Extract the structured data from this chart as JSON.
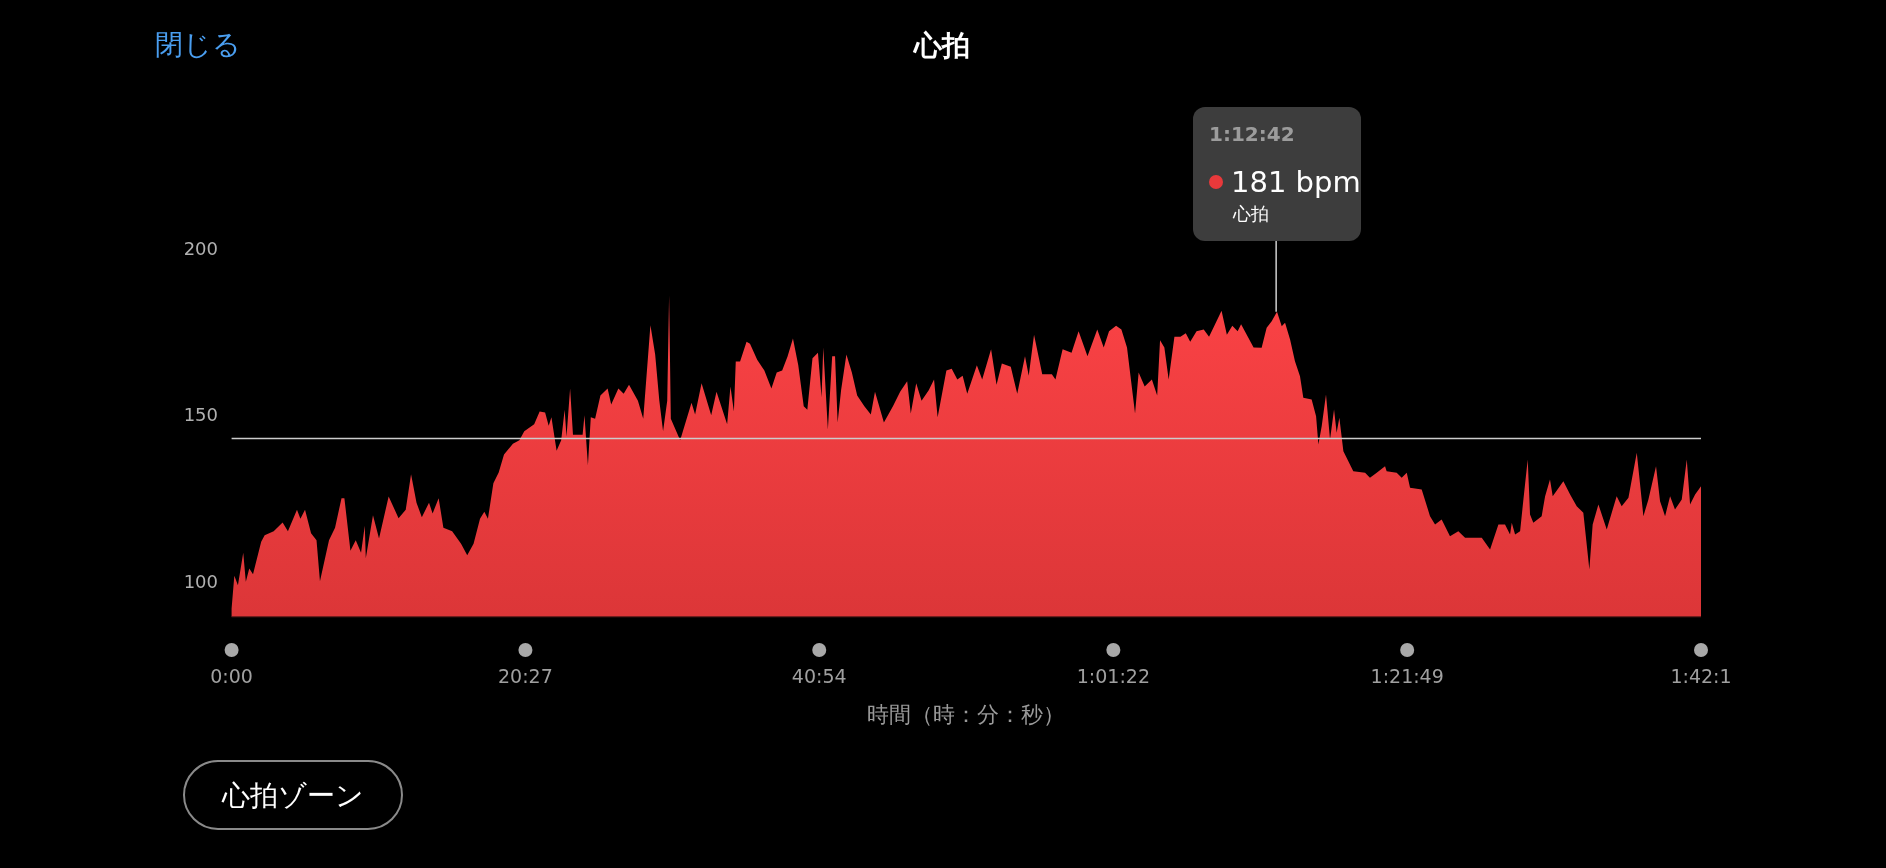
{
  "chart_data": {
    "type": "area",
    "title": "心拍",
    "xlabel": "時間（時：分：秒）",
    "color": "#e8393b",
    "xlim": [
      0,
      102.27
    ],
    "ylim": [
      89.5,
      200
    ],
    "xticks": [
      {
        "value": 0,
        "label": "0:00"
      },
      {
        "value": 20.45,
        "label": "20:27"
      },
      {
        "value": 40.9,
        "label": "40:54"
      },
      {
        "value": 61.37,
        "label": "1:01:22"
      },
      {
        "value": 81.82,
        "label": "1:21:49"
      },
      {
        "value": 102.27,
        "label": "1:42:1"
      }
    ],
    "yticks": [
      100,
      150,
      200
    ],
    "grid": false,
    "ref_lines": [
      {
        "axis": "y",
        "value": 143,
        "color": "#cccccc"
      }
    ],
    "annotations": [
      "閉じる",
      "心拍ゾーン",
      {
        "text": "1:12:42\n181 bpm\n心拍",
        "x": 72.7,
        "y": 181
      }
    ],
    "x": [
      0,
      0.19,
      0.44,
      0.81,
      0.99,
      1.23,
      1.49,
      2.06,
      2.3,
      2.93,
      3.55,
      3.92,
      4.55,
      4.79,
      5.11,
      5.53,
      5.91,
      6.15,
      6.78,
      7.2,
      7.65,
      7.85,
      8.27,
      8.64,
      9.01,
      9.27,
      9.34,
      9.84,
      10.26,
      10.93,
      11.62,
      12.12,
      12.49,
      12.87,
      13.24,
      13.74,
      13.99,
      14.41,
      14.74,
      15.35,
      15.97,
      16.4,
      16.84,
      17.29,
      17.59,
      17.84,
      18.22,
      18.59,
      18.96,
      19.58,
      20.03,
      20.37,
      21.06,
      21.44,
      21.82,
      22.07,
      22.26,
      22.62,
      22.94,
      23.18,
      23.31,
      23.56,
      23.76,
      24.43,
      24.56,
      24.8,
      25.0,
      25.3,
      25.67,
      26.17,
      26.42,
      26.92,
      27.29,
      27.66,
      28.28,
      28.65,
      29.15,
      29.48,
      29.77,
      30.03,
      30.32,
      30.45,
      30.57,
      31.22,
      32.01,
      32.26,
      32.71,
      33.38,
      33.75,
      34.49,
      34.72,
      34.96,
      35.09,
      35.39,
      35.84,
      36.08,
      36.58,
      37.08,
      37.57,
      37.94,
      38.32,
      38.7,
      39.07,
      39.44,
      39.82,
      40.07,
      40.43,
      40.81,
      41.06,
      41.18,
      41.5,
      41.8,
      42.0,
      42.18,
      42.42,
      42.79,
      43.17,
      43.54,
      44.04,
      44.49,
      44.78,
      45.4,
      46.03,
      46.53,
      47.02,
      47.27,
      47.65,
      48.02,
      48.52,
      48.89,
      49.14,
      49.75,
      50.12,
      50.51,
      50.88,
      51.2,
      51.87,
      52.24,
      52.86,
      53.24,
      53.61,
      54.23,
      54.68,
      55.22,
      55.48,
      55.85,
      56.42,
      57.09,
      57.34,
      57.84,
      58.46,
      58.95,
      59.57,
      60.25,
      60.7,
      61.07,
      61.56,
      61.93,
      62.32,
      62.56,
      62.88,
      63.13,
      63.55,
      64.05,
      64.42,
      64.62,
      64.92,
      65.22,
      65.62,
      66.04,
      66.41,
      66.72,
      67.16,
      67.66,
      68.03,
      68.4,
      68.9,
      69.27,
      69.65,
      70.02,
      70.26,
      71.13,
      71.69,
      72.04,
      72.39,
      72.76,
      73.09,
      73.32,
      73.67,
      74.01,
      74.36,
      74.59,
      75.17,
      75.48,
      75.64,
      75.87,
      76.17,
      76.45,
      76.73,
      76.91,
      77.1,
      77.38,
      78.07,
      78.89,
      79.23,
      79.7,
      80.28,
      80.39,
      81.09,
      81.44,
      81.79,
      82.02,
      82.83,
      83.41,
      83.76,
      84.22,
      84.8,
      85.38,
      85.85,
      87.01,
      87.59,
      88.17,
      88.63,
      88.98,
      89.1,
      89.33,
      89.68,
      89.91,
      90.21,
      90.37,
      90.6,
      91.18,
      91.42,
      91.76,
      91.95,
      92.69,
      93.16,
      93.62,
      94.08,
      94.5,
      94.73,
      95.13,
      95.71,
      96.4,
      96.75,
      97.22,
      97.8,
      98.26,
      98.61,
      99.14,
      99.42,
      99.77,
      100.12,
      100.46,
      100.93,
      101.28,
      101.51,
      101.86,
      102.27
    ],
    "values": [
      92,
      101.8,
      99,
      108.7,
      100,
      104,
      102.3,
      112,
      114,
      115.2,
      117.8,
      115.2,
      121.6,
      118.9,
      121.6,
      114.6,
      112.5,
      100.2,
      112.5,
      116.2,
      125.1,
      125.1,
      109.3,
      112.5,
      108.7,
      116.8,
      107.1,
      120,
      113,
      125.6,
      119.1,
      121.6,
      132.3,
      123.7,
      119.4,
      123.7,
      120.5,
      125.1,
      116.2,
      115.2,
      111.4,
      108,
      111.4,
      118.9,
      121,
      118.9,
      129.6,
      132.8,
      138.2,
      141.4,
      142.5,
      145.2,
      147.3,
      151.1,
      150.8,
      146.8,
      149.4,
      139.3,
      142.5,
      151.6,
      143.6,
      158,
      144.1,
      144.1,
      150,
      135,
      149.4,
      148.9,
      155.9,
      158,
      153.2,
      158,
      156.4,
      159.1,
      154.3,
      148.9,
      177,
      168.2,
      154.3,
      145.2,
      154.3,
      185.9,
      148.9,
      142.5,
      153.7,
      150.2,
      159.6,
      150,
      157,
      147.3,
      158.6,
      151.1,
      166.1,
      166.1,
      172,
      171.4,
      166.6,
      163.4,
      158,
      162.8,
      163.4,
      167.7,
      173,
      165,
      152.7,
      151.6,
      167.1,
      168.7,
      155.3,
      170.3,
      145.7,
      167.7,
      167.7,
      147.8,
      157.5,
      168.2,
      162.8,
      155.9,
      152.7,
      150.2,
      157,
      147.8,
      152.7,
      157,
      160.2,
      150.5,
      159.6,
      154.3,
      157.5,
      160.7,
      149.4,
      163.4,
      163.9,
      160.7,
      161.8,
      156.4,
      165,
      160.7,
      169.8,
      159.1,
      165.5,
      164.5,
      156.4,
      167.7,
      161.8,
      174.1,
      162.3,
      162.3,
      160.7,
      169.8,
      168.7,
      175.2,
      167.7,
      175.7,
      170.3,
      175.2,
      176.8,
      175.7,
      170.3,
      161.8,
      150.5,
      162.8,
      158.6,
      160.7,
      155.9,
      172.5,
      170.3,
      160.7,
      173.5,
      173.5,
      174.6,
      172,
      175.2,
      175.7,
      173.5,
      176.8,
      181.3,
      174.1,
      176.8,
      175.2,
      177.3,
      170.3,
      170.2,
      176.2,
      178.2,
      181,
      176.7,
      177.7,
      172.7,
      166.2,
      161.7,
      155.2,
      154.7,
      149.7,
      141.2,
      146.7,
      156.2,
      142.7,
      151.7,
      144.7,
      149.2,
      139.2,
      133.2,
      132.7,
      131.2,
      132.7,
      134.7,
      133.2,
      132.7,
      131.2,
      132.7,
      128.2,
      127.7,
      119.7,
      117.2,
      118.7,
      113.7,
      115.2,
      113.2,
      113.2,
      109.7,
      117.2,
      117.2,
      114.2,
      117.7,
      114.2,
      115.2,
      124.7,
      136.7,
      120.2,
      117.7,
      119.7,
      125.7,
      130.7,
      125.7,
      130.2,
      126.2,
      122.7,
      120.7,
      103.7,
      117.2,
      123.2,
      115.7,
      125.7,
      122.7,
      125.2,
      138.7,
      119.7,
      124.7,
      134.7,
      124.2,
      119.7,
      125.7,
      121.7,
      124.7,
      136.7,
      123.2,
      126.2,
      128.7
    ]
  }
}
